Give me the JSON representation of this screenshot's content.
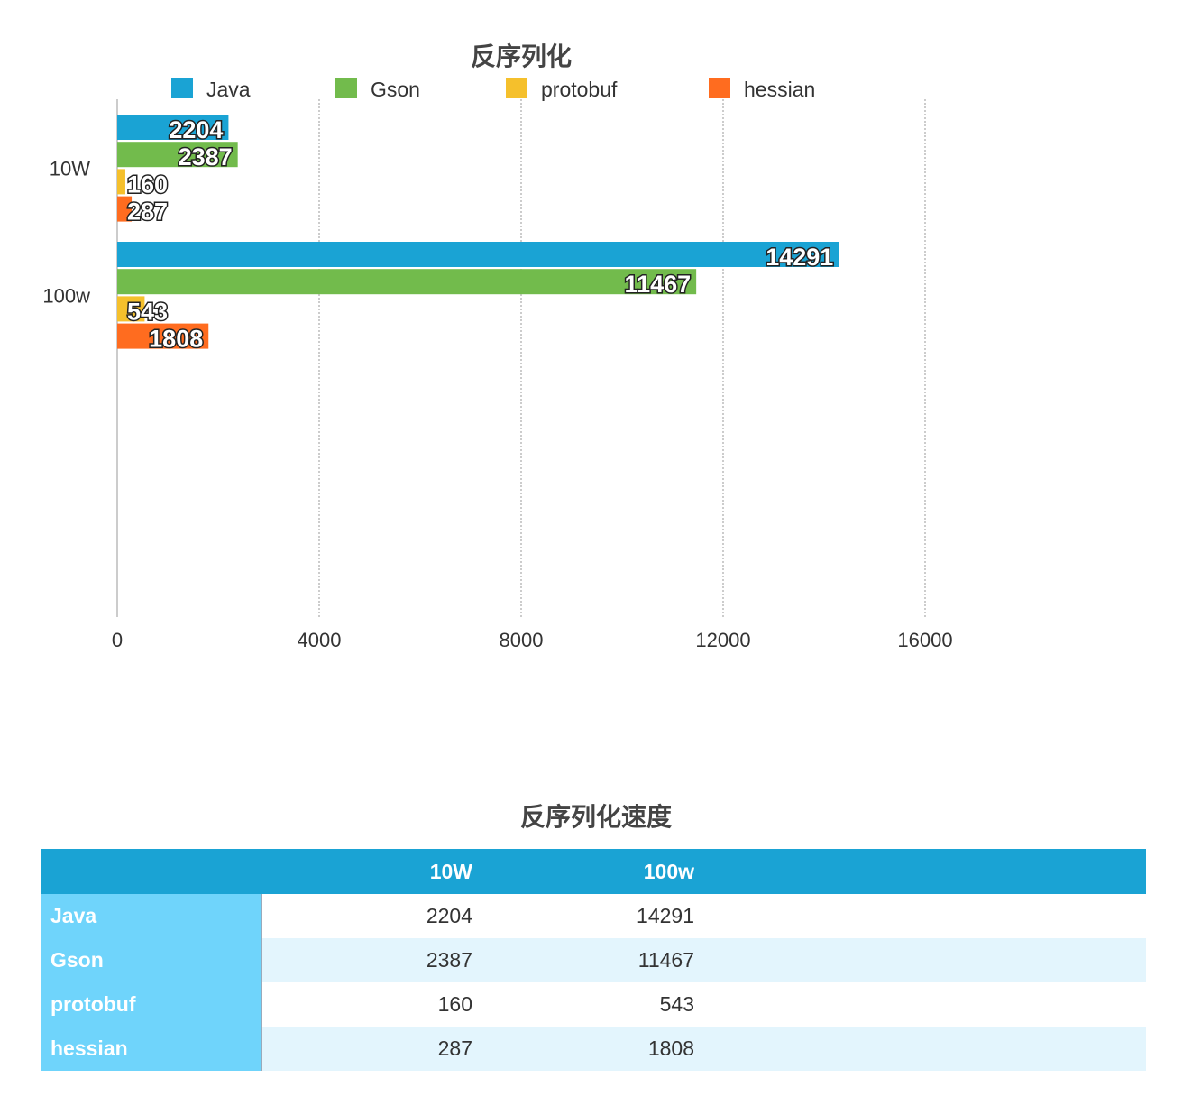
{
  "chart_data": {
    "type": "bar",
    "orientation": "horizontal",
    "title": "反序列化",
    "categories": [
      "10W",
      "100w"
    ],
    "series": [
      {
        "name": "Java",
        "values": [
          2204,
          14291
        ],
        "color": "#1aa3d4"
      },
      {
        "name": "Gson",
        "values": [
          2387,
          11467
        ],
        "color": "#72bb4c"
      },
      {
        "name": "protobuf",
        "values": [
          160,
          543
        ],
        "color": "#f5c02c"
      },
      {
        "name": "hessian",
        "values": [
          287,
          1808
        ],
        "color": "#ff6c1f"
      }
    ],
    "xlim": [
      0,
      20000
    ],
    "xticks": [
      0,
      4000,
      8000,
      12000,
      16000
    ],
    "grid": "vertical-dotted",
    "legend": "top"
  },
  "table": {
    "title": "反序列化速度",
    "columns": [
      "",
      "10W",
      "100w"
    ],
    "rows": [
      {
        "label": "Java",
        "values": [
          "2204",
          "14291"
        ]
      },
      {
        "label": "Gson",
        "values": [
          "2387",
          "11467"
        ]
      },
      {
        "label": "protobuf",
        "values": [
          "160",
          "543"
        ]
      },
      {
        "label": "hessian",
        "values": [
          "287",
          "1808"
        ]
      }
    ]
  }
}
